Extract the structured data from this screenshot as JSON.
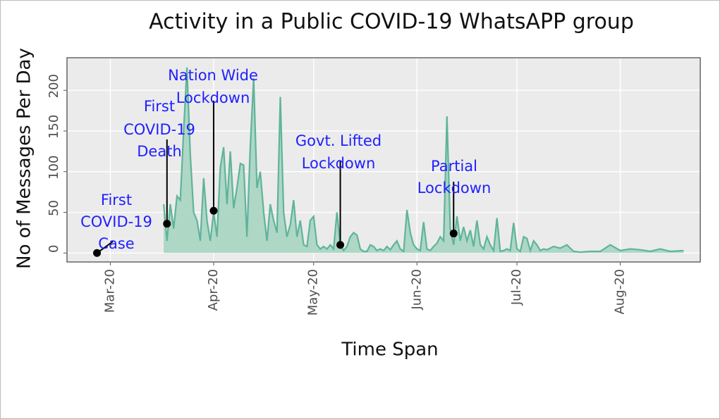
{
  "chart_data": {
    "type": "area",
    "title": "Activity in a Public COVID-19 WhatsAPP group",
    "x_label": "Time Span",
    "y_label": "No of Messages Per Day",
    "xlim": [
      "2020-02-17",
      "2020-08-25"
    ],
    "xticks": [
      {
        "value": "2020-03-01",
        "label": "Mar-20"
      },
      {
        "value": "2020-04-01",
        "label": "Apr-20"
      },
      {
        "value": "2020-05-01",
        "label": "May-20"
      },
      {
        "value": "2020-06-01",
        "label": "Jun-20"
      },
      {
        "value": "2020-07-01",
        "label": "Jul-20"
      },
      {
        "value": "2020-08-01",
        "label": "Aug-20"
      }
    ],
    "ylim": [
      -11,
      240
    ],
    "yticks": [
      0,
      50,
      100,
      150,
      200
    ],
    "grid": true,
    "series": [
      {
        "line_color": "#5fb49a",
        "fill_color": "#a3d3bf",
        "x": [
          "2020-03-17",
          "2020-03-18",
          "2020-03-19",
          "2020-03-20",
          "2020-03-21",
          "2020-03-22",
          "2020-03-23",
          "2020-03-24",
          "2020-03-25",
          "2020-03-26",
          "2020-03-27",
          "2020-03-28",
          "2020-03-29",
          "2020-03-30",
          "2020-03-31",
          "2020-04-01",
          "2020-04-02",
          "2020-04-03",
          "2020-04-04",
          "2020-04-05",
          "2020-04-06",
          "2020-04-07",
          "2020-04-08",
          "2020-04-09",
          "2020-04-10",
          "2020-04-11",
          "2020-04-12",
          "2020-04-13",
          "2020-04-14",
          "2020-04-15",
          "2020-04-16",
          "2020-04-17",
          "2020-04-18",
          "2020-04-19",
          "2020-04-20",
          "2020-04-21",
          "2020-04-22",
          "2020-04-23",
          "2020-04-24",
          "2020-04-25",
          "2020-04-26",
          "2020-04-27",
          "2020-04-28",
          "2020-04-29",
          "2020-04-30",
          "2020-05-01",
          "2020-05-02",
          "2020-05-03",
          "2020-05-04",
          "2020-05-05",
          "2020-05-06",
          "2020-05-07",
          "2020-05-08",
          "2020-05-09",
          "2020-05-10",
          "2020-05-11",
          "2020-05-12",
          "2020-05-13",
          "2020-05-14",
          "2020-05-15",
          "2020-05-16",
          "2020-05-17",
          "2020-05-18",
          "2020-05-19",
          "2020-05-20",
          "2020-05-21",
          "2020-05-22",
          "2020-05-23",
          "2020-05-24",
          "2020-05-25",
          "2020-05-26",
          "2020-05-27",
          "2020-05-28",
          "2020-05-29",
          "2020-05-30",
          "2020-05-31",
          "2020-06-01",
          "2020-06-02",
          "2020-06-03",
          "2020-06-04",
          "2020-06-05",
          "2020-06-06",
          "2020-06-07",
          "2020-06-08",
          "2020-06-09",
          "2020-06-10",
          "2020-06-11",
          "2020-06-12",
          "2020-06-13",
          "2020-06-14",
          "2020-06-15",
          "2020-06-16",
          "2020-06-17",
          "2020-06-18",
          "2020-06-19",
          "2020-06-20",
          "2020-06-21",
          "2020-06-22",
          "2020-06-23",
          "2020-06-24",
          "2020-06-25",
          "2020-06-26",
          "2020-06-27",
          "2020-06-28",
          "2020-06-29",
          "2020-06-30",
          "2020-07-01",
          "2020-07-02",
          "2020-07-03",
          "2020-07-04",
          "2020-07-05",
          "2020-07-06",
          "2020-07-07",
          "2020-07-08",
          "2020-07-09",
          "2020-07-10",
          "2020-07-12",
          "2020-07-14",
          "2020-07-16",
          "2020-07-18",
          "2020-07-20",
          "2020-07-23",
          "2020-07-26",
          "2020-07-29",
          "2020-08-01",
          "2020-08-04",
          "2020-08-07",
          "2020-08-10",
          "2020-08-13",
          "2020-08-16",
          "2020-08-20"
        ],
        "values": [
          60,
          15,
          60,
          30,
          70,
          65,
          150,
          228,
          120,
          50,
          40,
          15,
          92,
          40,
          15,
          50,
          20,
          105,
          130,
          60,
          125,
          55,
          80,
          110,
          108,
          20,
          130,
          215,
          80,
          100,
          50,
          15,
          60,
          40,
          25,
          192,
          50,
          20,
          35,
          65,
          20,
          40,
          10,
          8,
          40,
          45,
          10,
          5,
          8,
          5,
          10,
          5,
          50,
          10,
          3,
          8,
          20,
          25,
          22,
          5,
          2,
          2,
          10,
          8,
          3,
          5,
          3,
          8,
          4,
          10,
          15,
          5,
          2,
          53,
          25,
          10,
          5,
          3,
          38,
          5,
          3,
          8,
          12,
          20,
          15,
          168,
          30,
          10,
          45,
          15,
          32,
          15,
          28,
          8,
          40,
          10,
          5,
          20,
          10,
          3,
          43,
          2,
          3,
          5,
          3,
          37,
          5,
          2,
          20,
          18,
          3,
          15,
          10,
          3,
          5,
          4,
          8,
          6,
          10,
          2,
          1,
          2,
          2,
          10,
          3,
          5,
          4,
          2,
          5,
          2,
          3
        ]
      }
    ],
    "annotations": [
      {
        "lines": [
          "First",
          "COVID-19",
          "Case"
        ],
        "x": "2020-02-26",
        "y": 0
      },
      {
        "lines": [
          "First",
          "COVID-19",
          "Death"
        ],
        "x": "2020-03-18",
        "y": 36
      },
      {
        "lines": [
          "Nation Wide",
          "Lockdown"
        ],
        "x": "2020-04-01",
        "y": 52
      },
      {
        "lines": [
          "Govt. Lifted",
          "Lockdown"
        ],
        "x": "2020-05-09",
        "y": 10
      },
      {
        "lines": [
          "Partial",
          "Lockdown"
        ],
        "x": "2020-06-12",
        "y": 24
      }
    ]
  }
}
